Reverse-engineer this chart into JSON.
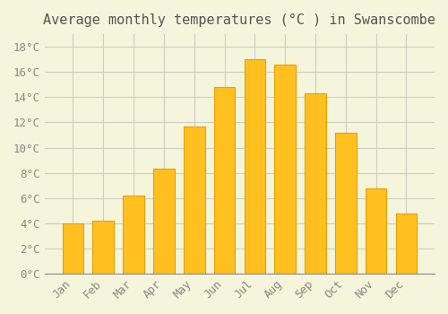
{
  "title": "Average monthly temperatures (°C ) in Swanscombe",
  "months": [
    "Jan",
    "Feb",
    "Mar",
    "Apr",
    "May",
    "Jun",
    "Jul",
    "Aug",
    "Sep",
    "Oct",
    "Nov",
    "Dec"
  ],
  "values": [
    4.0,
    4.2,
    6.2,
    8.3,
    11.7,
    14.8,
    17.0,
    16.6,
    14.3,
    11.2,
    6.8,
    4.8
  ],
  "bar_color": "#FFC020",
  "bar_edge_color": "#E8A000",
  "background_color": "#F5F5DC",
  "grid_color": "#CCCCCC",
  "ylim": [
    0,
    19
  ],
  "yticks": [
    0,
    2,
    4,
    6,
    8,
    10,
    12,
    14,
    16,
    18
  ],
  "ytick_labels": [
    "0°C",
    "2°C",
    "4°C",
    "6°C",
    "8°C",
    "10°C",
    "12°C",
    "14°C",
    "16°C",
    "18°C"
  ],
  "title_fontsize": 11,
  "tick_fontsize": 9,
  "title_color": "#555555",
  "tick_color": "#888888"
}
